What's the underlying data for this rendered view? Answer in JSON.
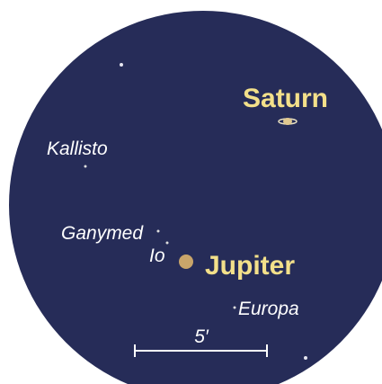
{
  "planets": [
    {
      "label": "Saturn"
    },
    {
      "label": "Jupiter"
    }
  ],
  "moons": [
    {
      "label": "Kallisto"
    },
    {
      "label": "Ganymed"
    },
    {
      "label": "Io"
    },
    {
      "label": "Europa"
    }
  ],
  "scale": {
    "label": "5′"
  }
}
